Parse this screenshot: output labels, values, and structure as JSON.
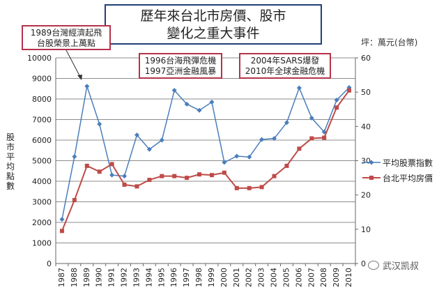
{
  "title_line1": "歷年來台北市房價、股市",
  "title_line2": "變化之重大事件",
  "unit_note": "坪：萬元(台幣)",
  "callouts": [
    {
      "line1": "1989台灣經濟起飛",
      "line2": "台股榮景上萬點"
    },
    {
      "line1": "1996台海飛彈危機",
      "line2": "1997亞洲金融風暴"
    },
    {
      "line1": "2004年SARS爆發",
      "line2": "2010年全球金融危機"
    }
  ],
  "watermark": "武汉凯叔",
  "colors": {
    "stock": "#4a7ebb",
    "house": "#be4b48",
    "title_border": "#1f3f77",
    "callout_border": "#b5324a"
  },
  "chart_data": {
    "type": "line",
    "x": [
      "1987",
      "1988",
      "1989",
      "1990",
      "1991",
      "1992",
      "1993",
      "1994",
      "1995",
      "1996",
      "1997",
      "1998",
      "1999",
      "2000",
      "2001",
      "2002",
      "2003",
      "2004",
      "2005",
      "2006",
      "2007",
      "2008",
      "2009",
      "2010"
    ],
    "ylabel_left": "股市平均點數",
    "ylim_left": [
      0,
      10000
    ],
    "yticks_left": [
      "0",
      "1000",
      "2000",
      "3000",
      "4000",
      "5000",
      "6000",
      "7000",
      "8000",
      "9000",
      "10000"
    ],
    "ylim_right": [
      0,
      60
    ],
    "yticks_right": [
      "0",
      "10",
      "20",
      "30",
      "40",
      "50",
      "60"
    ],
    "series": [
      {
        "name": "平均股票指數",
        "axis": "left",
        "marker": "diamond",
        "values": [
          2150,
          5200,
          8620,
          6780,
          4300,
          4250,
          6250,
          5550,
          6000,
          8420,
          7750,
          7450,
          7850,
          4920,
          5220,
          5180,
          6030,
          6080,
          6850,
          8540,
          7070,
          6400,
          7950,
          8560
        ]
      },
      {
        "name": "台北平均房價",
        "axis": "right",
        "marker": "square",
        "values": [
          9.5,
          18.5,
          28.5,
          26.8,
          29.0,
          23.0,
          22.5,
          24.4,
          25.5,
          25.5,
          25.0,
          26.0,
          25.8,
          26.5,
          22.0,
          22.0,
          22.3,
          25.5,
          28.5,
          33.5,
          36.5,
          36.7,
          45.5,
          50.5
        ]
      }
    ]
  }
}
